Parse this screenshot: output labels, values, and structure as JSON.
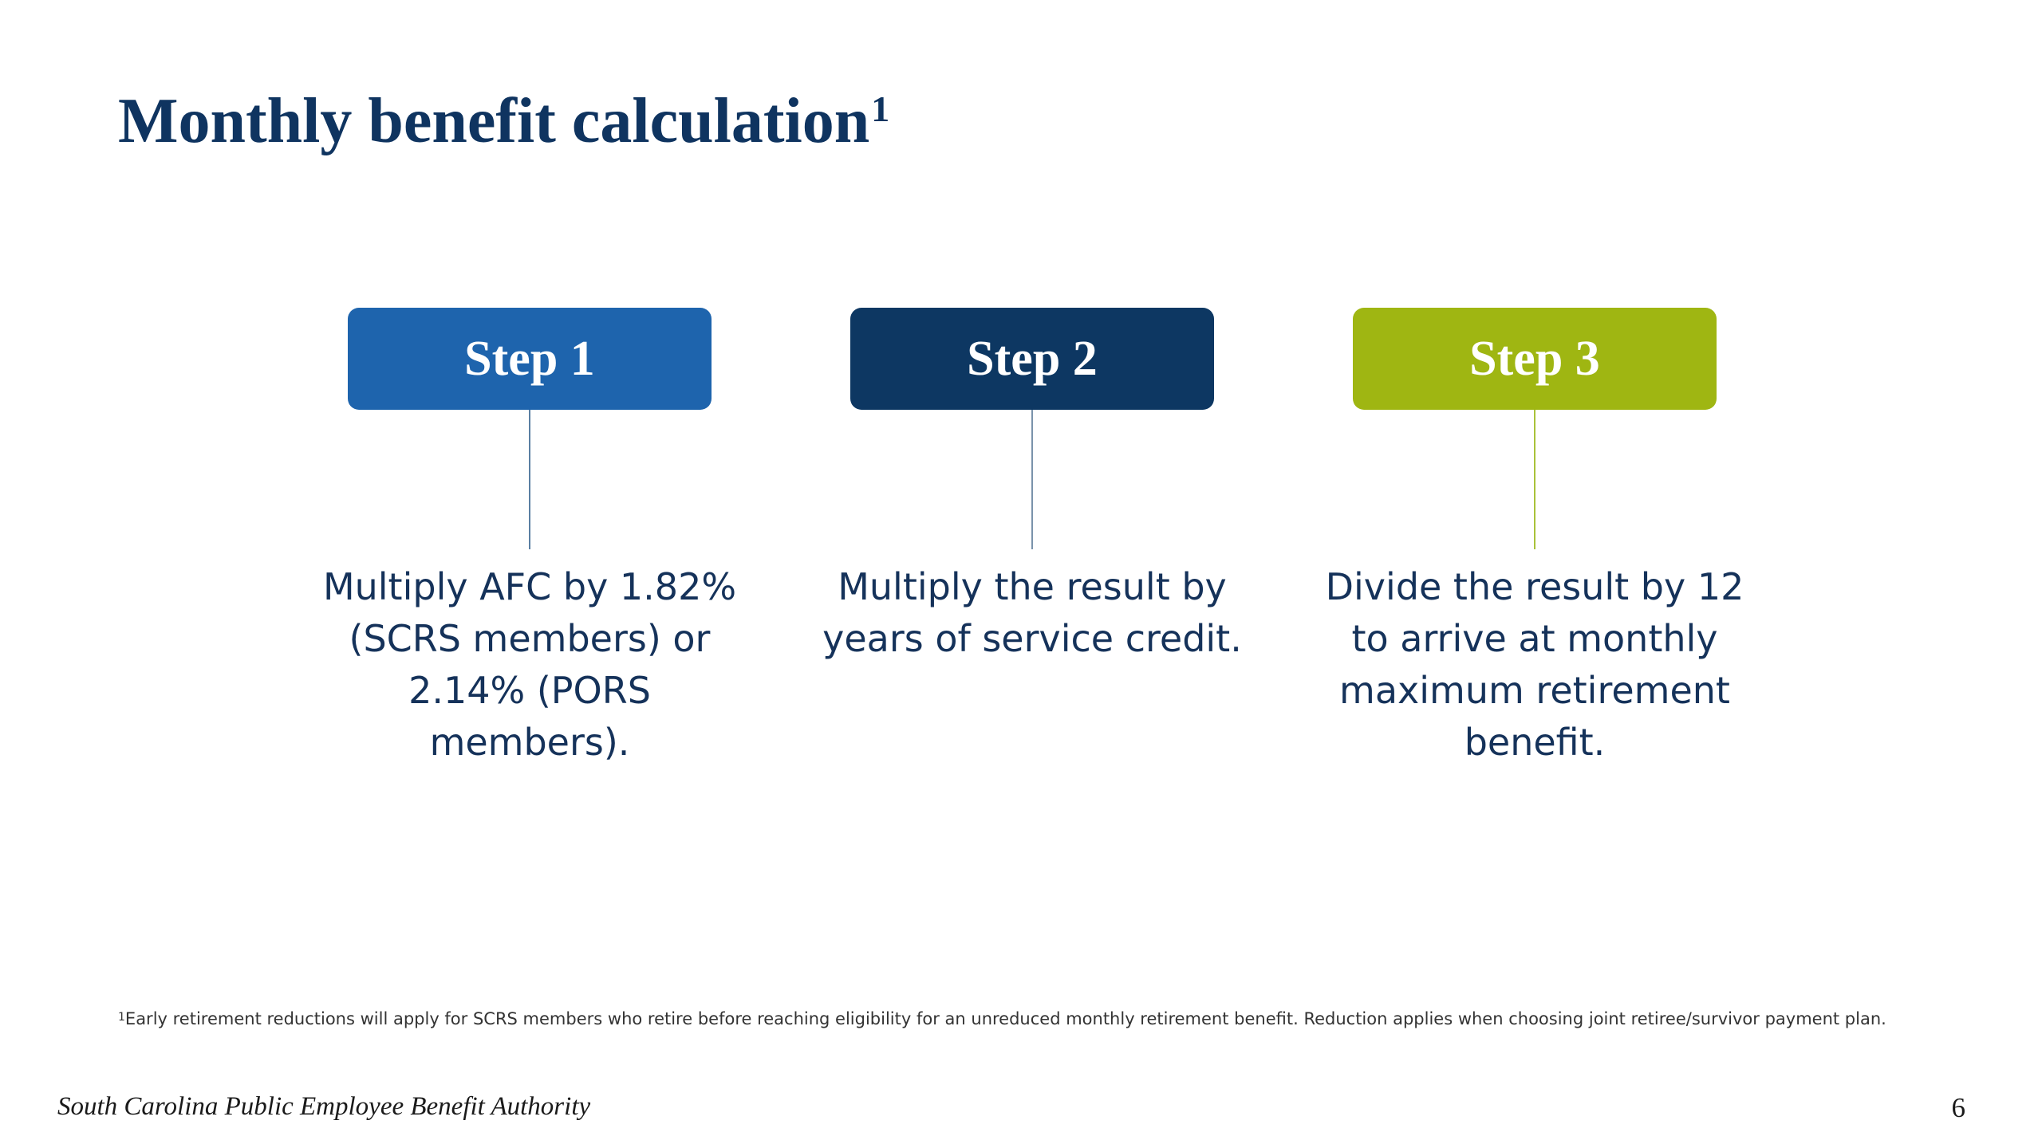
{
  "title": {
    "text": "Monthly benefit calculation",
    "superscript": "1"
  },
  "steps": [
    {
      "label": "Step 1",
      "color": "#1e64ad",
      "line_color": "#5a7fa3",
      "description": "Multiply AFC by 1.82% (SCRS members) or 2.14% (PORS members)."
    },
    {
      "label": "Step 2",
      "color": "#0d3762",
      "line_color": "#7a93ab",
      "description": "Multiply the result by years of service credit."
    },
    {
      "label": "Step 3",
      "color": "#9fb612",
      "line_color": "#a9c23a",
      "description": "Divide the result by 12 to arrive at monthly maximum retirement benefit."
    }
  ],
  "footnote": {
    "marker": "1",
    "text": "Early retirement reductions will apply for SCRS members who retire before reaching eligibility for an unreduced monthly retirement benefit. Reduction applies when choosing joint retiree/survivor payment plan."
  },
  "footer": {
    "organization": "South Carolina Public Employee Benefit Authority",
    "page_number": "6"
  }
}
